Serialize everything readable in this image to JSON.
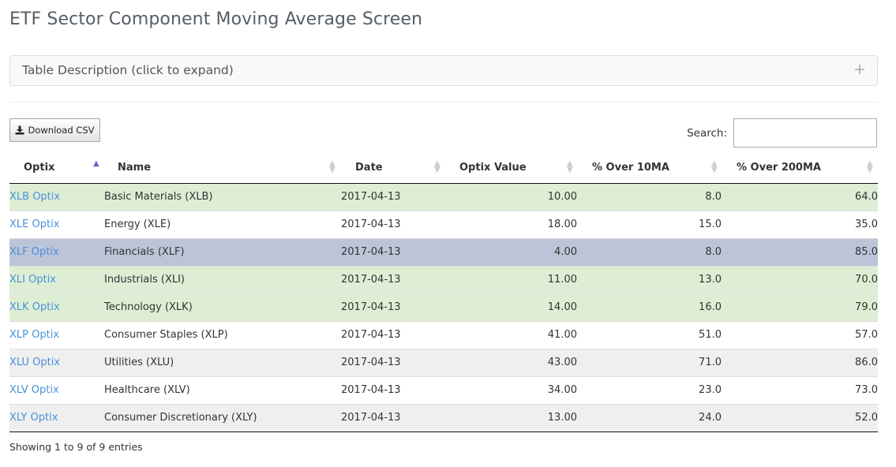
{
  "page": {
    "title": "ETF Sector Component Moving Average Screen"
  },
  "accordion": {
    "label": "Table Description (click to expand)",
    "icon": "plus-icon"
  },
  "toolbar": {
    "download_label": "Download CSV",
    "download_icon": "download-icon"
  },
  "search": {
    "label": "Search:",
    "value": "",
    "placeholder": ""
  },
  "colors": {
    "row_green": "#ddeed5",
    "row_blue": "#bcc5d8",
    "row_gray": "#efefef",
    "row_white": "#ffffff",
    "link": "#4a90d9"
  },
  "table": {
    "headers": [
      "Optix",
      "Name",
      "Date",
      "Optix Value",
      "% Over 10MA",
      "% Over 200MA"
    ],
    "sorted_column": "Optix",
    "sort_direction": "ascending",
    "rows": [
      {
        "optix": "XLB Optix",
        "name": "Basic Materials (XLB)",
        "date": "2017-04-13",
        "optix_value": "10.00",
        "over_10ma": "8.0",
        "over_200ma": "64.0",
        "highlight": "green"
      },
      {
        "optix": "XLE Optix",
        "name": "Energy (XLE)",
        "date": "2017-04-13",
        "optix_value": "18.00",
        "over_10ma": "15.0",
        "over_200ma": "35.0",
        "highlight": "white"
      },
      {
        "optix": "XLF Optix",
        "name": "Financials (XLF)",
        "date": "2017-04-13",
        "optix_value": "4.00",
        "over_10ma": "8.0",
        "over_200ma": "85.0",
        "highlight": "blue"
      },
      {
        "optix": "XLI Optix",
        "name": "Industrials (XLI)",
        "date": "2017-04-13",
        "optix_value": "11.00",
        "over_10ma": "13.0",
        "over_200ma": "70.0",
        "highlight": "green"
      },
      {
        "optix": "XLK Optix",
        "name": "Technology (XLK)",
        "date": "2017-04-13",
        "optix_value": "14.00",
        "over_10ma": "16.0",
        "over_200ma": "79.0",
        "highlight": "green"
      },
      {
        "optix": "XLP Optix",
        "name": "Consumer Staples (XLP)",
        "date": "2017-04-13",
        "optix_value": "41.00",
        "over_10ma": "51.0",
        "over_200ma": "57.0",
        "highlight": "white"
      },
      {
        "optix": "XLU Optix",
        "name": "Utilities (XLU)",
        "date": "2017-04-13",
        "optix_value": "43.00",
        "over_10ma": "71.0",
        "over_200ma": "86.0",
        "highlight": "gray"
      },
      {
        "optix": "XLV Optix",
        "name": "Healthcare (XLV)",
        "date": "2017-04-13",
        "optix_value": "34.00",
        "over_10ma": "23.0",
        "over_200ma": "73.0",
        "highlight": "white"
      },
      {
        "optix": "XLY Optix",
        "name": "Consumer Discretionary (XLY)",
        "date": "2017-04-13",
        "optix_value": "13.00",
        "over_10ma": "24.0",
        "over_200ma": "52.0",
        "highlight": "gray"
      }
    ]
  },
  "footer": {
    "info": "Showing 1 to 9 of 9 entries"
  }
}
